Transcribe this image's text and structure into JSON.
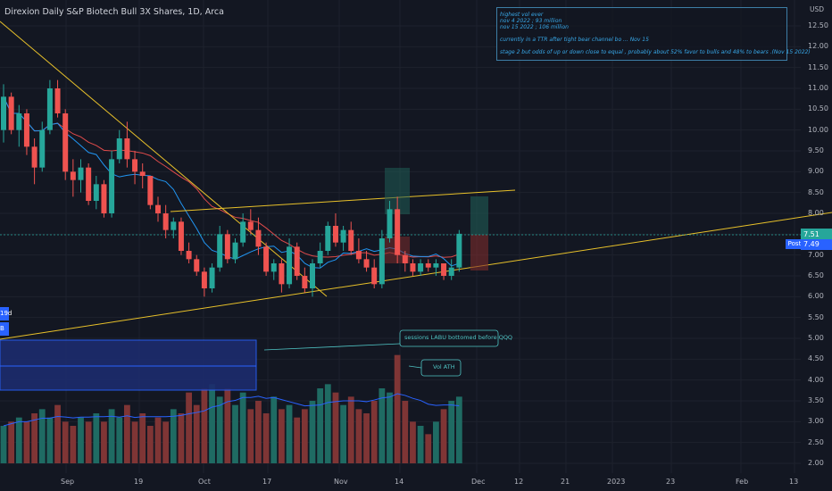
{
  "title": "Direxion Daily S&P Biotech Bull 3X Shares, 1D, Arca",
  "currency": "USD",
  "annotation": {
    "lines": [
      "highest vol ever",
      "nov 4 2022 ; 93 million",
      "nov 15 2022 ; 106 million",
      "currently in a TTR after tight bear channel bo ... Nov 15",
      "stage 2 but odds of up or down close to equal , probably about 52% favor to bulls and 48% to bears .(Nov 15 2022)"
    ]
  },
  "callouts": {
    "sessions": "sessions LABU bottomed before QQQ",
    "vol": "Vol ATH"
  },
  "price_tag": "7.51",
  "post": {
    "label": "Post",
    "value": "7.49"
  },
  "left_labels": {
    "top": "19d",
    "bottom": "B"
  },
  "colors": {
    "up": "#26a69a",
    "down": "#ef5350",
    "ma_fast": "#2196f3",
    "ma_slow": "#e04b4b",
    "trendline": "#e8c12a",
    "bg": "#131722"
  },
  "chart_data": {
    "type": "candlestick",
    "ylim": [
      1.75,
      13.25
    ],
    "yticks": [
      "12.50",
      "12.00",
      "11.50",
      "11.00",
      "10.50",
      "10.00",
      "9.50",
      "9.00",
      "8.50",
      "8.00",
      "7.50",
      "7.00",
      "6.50",
      "6.00",
      "5.50",
      "5.00",
      "4.50",
      "4.00",
      "3.50",
      "3.00",
      "2.50",
      "2.00"
    ],
    "xticks": [
      "Sep",
      "19",
      "Oct",
      "17",
      "Nov",
      "14",
      "Dec",
      "12",
      "21",
      "2023",
      "23",
      "Feb",
      "13"
    ],
    "last_close": 7.51,
    "post_market": 7.49,
    "candles": [
      {
        "o": 10.0,
        "h": 11.1,
        "l": 9.7,
        "c": 10.8
      },
      {
        "o": 10.8,
        "h": 10.9,
        "l": 9.9,
        "c": 10.0
      },
      {
        "o": 10.0,
        "h": 10.6,
        "l": 9.6,
        "c": 10.4
      },
      {
        "o": 10.4,
        "h": 10.5,
        "l": 9.4,
        "c": 9.6
      },
      {
        "o": 9.6,
        "h": 9.8,
        "l": 8.7,
        "c": 9.1
      },
      {
        "o": 9.1,
        "h": 10.2,
        "l": 9.0,
        "c": 10.0
      },
      {
        "o": 10.0,
        "h": 11.2,
        "l": 9.9,
        "c": 11.0
      },
      {
        "o": 11.0,
        "h": 11.2,
        "l": 10.3,
        "c": 10.4
      },
      {
        "o": 10.4,
        "h": 10.5,
        "l": 8.8,
        "c": 9.0
      },
      {
        "o": 9.0,
        "h": 9.3,
        "l": 8.4,
        "c": 8.8
      },
      {
        "o": 8.8,
        "h": 9.3,
        "l": 8.5,
        "c": 9.1
      },
      {
        "o": 9.1,
        "h": 9.2,
        "l": 8.2,
        "c": 8.3
      },
      {
        "o": 8.3,
        "h": 8.9,
        "l": 8.1,
        "c": 8.7
      },
      {
        "o": 8.7,
        "h": 8.8,
        "l": 7.9,
        "c": 8.0
      },
      {
        "o": 8.0,
        "h": 9.5,
        "l": 7.9,
        "c": 9.3
      },
      {
        "o": 9.3,
        "h": 10.0,
        "l": 9.2,
        "c": 9.8
      },
      {
        "o": 9.8,
        "h": 10.2,
        "l": 9.1,
        "c": 9.3
      },
      {
        "o": 9.3,
        "h": 9.5,
        "l": 8.7,
        "c": 9.0
      },
      {
        "o": 9.0,
        "h": 9.2,
        "l": 8.6,
        "c": 8.9
      },
      {
        "o": 8.9,
        "h": 8.9,
        "l": 8.1,
        "c": 8.2
      },
      {
        "o": 8.2,
        "h": 8.4,
        "l": 7.8,
        "c": 8.0
      },
      {
        "o": 8.0,
        "h": 8.2,
        "l": 7.4,
        "c": 7.6
      },
      {
        "o": 7.6,
        "h": 7.9,
        "l": 7.4,
        "c": 7.8
      },
      {
        "o": 7.8,
        "h": 7.9,
        "l": 7.0,
        "c": 7.1
      },
      {
        "o": 7.1,
        "h": 7.3,
        "l": 6.8,
        "c": 6.9
      },
      {
        "o": 6.9,
        "h": 7.0,
        "l": 6.5,
        "c": 6.6
      },
      {
        "o": 6.6,
        "h": 6.7,
        "l": 6.0,
        "c": 6.2
      },
      {
        "o": 6.2,
        "h": 6.8,
        "l": 6.1,
        "c": 6.7
      },
      {
        "o": 6.7,
        "h": 7.7,
        "l": 6.6,
        "c": 7.5
      },
      {
        "o": 7.5,
        "h": 7.6,
        "l": 6.8,
        "c": 6.9
      },
      {
        "o": 6.9,
        "h": 7.4,
        "l": 6.8,
        "c": 7.3
      },
      {
        "o": 7.3,
        "h": 8.0,
        "l": 7.2,
        "c": 7.8
      },
      {
        "o": 7.8,
        "h": 8.1,
        "l": 7.5,
        "c": 7.6
      },
      {
        "o": 7.6,
        "h": 7.9,
        "l": 7.0,
        "c": 7.2
      },
      {
        "o": 7.2,
        "h": 7.3,
        "l": 6.5,
        "c": 6.6
      },
      {
        "o": 6.6,
        "h": 6.9,
        "l": 6.4,
        "c": 6.8
      },
      {
        "o": 6.8,
        "h": 6.9,
        "l": 6.1,
        "c": 6.3
      },
      {
        "o": 6.3,
        "h": 7.4,
        "l": 6.2,
        "c": 7.2
      },
      {
        "o": 7.2,
        "h": 7.3,
        "l": 6.4,
        "c": 6.5
      },
      {
        "o": 6.5,
        "h": 6.7,
        "l": 6.1,
        "c": 6.2
      },
      {
        "o": 6.2,
        "h": 6.9,
        "l": 6.0,
        "c": 6.8
      },
      {
        "o": 6.8,
        "h": 7.3,
        "l": 6.7,
        "c": 7.1
      },
      {
        "o": 7.1,
        "h": 7.8,
        "l": 7.0,
        "c": 7.7
      },
      {
        "o": 7.7,
        "h": 8.0,
        "l": 7.2,
        "c": 7.3
      },
      {
        "o": 7.3,
        "h": 7.7,
        "l": 7.1,
        "c": 7.6
      },
      {
        "o": 7.6,
        "h": 7.8,
        "l": 7.0,
        "c": 7.1
      },
      {
        "o": 7.1,
        "h": 7.4,
        "l": 6.8,
        "c": 6.9
      },
      {
        "o": 6.9,
        "h": 7.1,
        "l": 6.6,
        "c": 6.7
      },
      {
        "o": 6.7,
        "h": 6.9,
        "l": 6.2,
        "c": 6.3
      },
      {
        "o": 6.3,
        "h": 7.6,
        "l": 6.2,
        "c": 7.4
      },
      {
        "o": 7.4,
        "h": 8.3,
        "l": 7.3,
        "c": 8.1
      },
      {
        "o": 8.1,
        "h": 8.4,
        "l": 6.8,
        "c": 7.0
      },
      {
        "o": 7.0,
        "h": 7.1,
        "l": 6.6,
        "c": 6.8
      },
      {
        "o": 6.8,
        "h": 6.9,
        "l": 6.5,
        "c": 6.6
      },
      {
        "o": 6.6,
        "h": 6.9,
        "l": 6.5,
        "c": 6.8
      },
      {
        "o": 6.8,
        "h": 6.9,
        "l": 6.6,
        "c": 6.7
      },
      {
        "o": 6.7,
        "h": 6.9,
        "l": 6.5,
        "c": 6.8
      },
      {
        "o": 6.8,
        "h": 6.8,
        "l": 6.4,
        "c": 6.5
      },
      {
        "o": 6.5,
        "h": 6.9,
        "l": 6.4,
        "c": 6.7
      },
      {
        "o": 6.7,
        "h": 7.6,
        "l": 6.6,
        "c": 7.51
      }
    ],
    "volume": [
      2.9,
      3.0,
      3.1,
      3.0,
      3.2,
      3.3,
      3.1,
      3.4,
      3.0,
      2.9,
      3.1,
      3.0,
      3.2,
      3.0,
      3.3,
      3.1,
      3.4,
      3.0,
      3.2,
      2.9,
      3.1,
      3.0,
      3.3,
      3.2,
      3.7,
      3.4,
      3.8,
      3.9,
      3.6,
      3.8,
      3.4,
      3.7,
      3.3,
      3.5,
      3.2,
      3.6,
      3.3,
      3.4,
      3.1,
      3.3,
      3.5,
      3.8,
      3.9,
      3.7,
      3.4,
      3.6,
      3.3,
      3.2,
      3.5,
      3.8,
      3.7,
      4.6,
      3.5,
      3.0,
      2.9,
      2.7,
      3.0,
      3.3,
      3.5,
      3.6
    ]
  }
}
